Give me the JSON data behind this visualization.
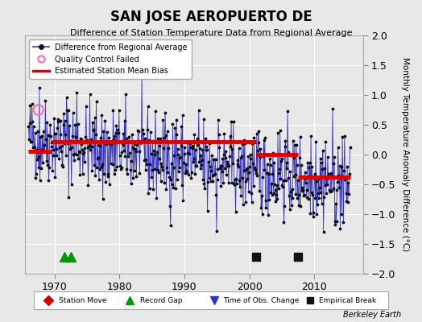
{
  "title": "SAN JOSE AEROPUERTO DE",
  "subtitle": "Difference of Station Temperature Data from Regional Average",
  "ylabel": "Monthly Temperature Anomaly Difference (°C)",
  "xlabel_credit": "Berkeley Earth",
  "ylim": [
    -2,
    2
  ],
  "xlim": [
    1965.5,
    2017.5
  ],
  "xticks": [
    1970,
    1980,
    1990,
    2000,
    2010
  ],
  "yticks": [
    -2,
    -1.5,
    -1,
    -0.5,
    0,
    0.5,
    1,
    1.5,
    2
  ],
  "bg_color": "#e8e8e8",
  "plot_bg_color": "#e8e8e8",
  "bias_segments": [
    {
      "x_start": 1966.0,
      "x_end": 1969.5,
      "bias": 0.05
    },
    {
      "x_start": 1969.5,
      "x_end": 2001.0,
      "bias": 0.22
    },
    {
      "x_start": 2001.0,
      "x_end": 2007.5,
      "bias": 0.0
    },
    {
      "x_start": 2007.5,
      "x_end": 2015.5,
      "bias": -0.38
    }
  ],
  "record_gaps": [
    1971.5,
    1972.5
  ],
  "empirical_breaks": [
    2001.0,
    2007.5
  ],
  "qc_failed": [
    [
      1967.5,
      0.75
    ]
  ],
  "grid_color": "#ffffff",
  "line_color": "#3333cc",
  "dot_color": "#111111",
  "bias_color": "#dd0000",
  "seed": 42
}
